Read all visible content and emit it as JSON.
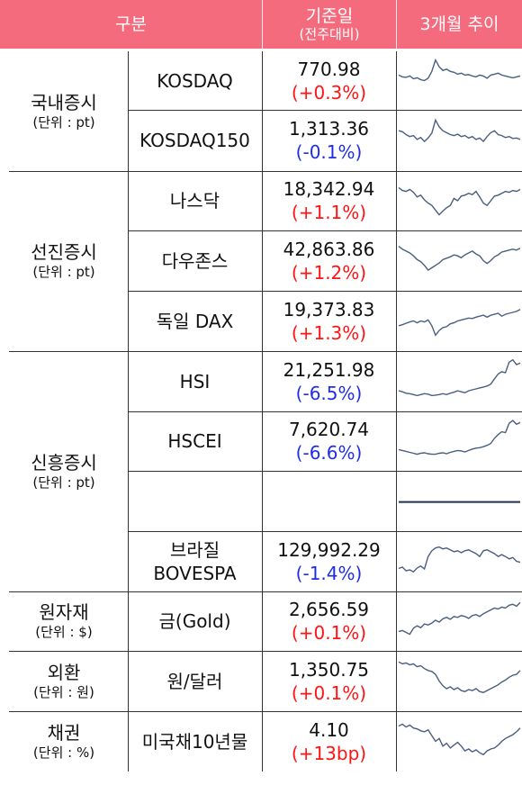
{
  "header": {
    "col_category": "구분",
    "col_value": "기준일",
    "col_value_sub": "(전주대비)",
    "col_trend": "3개월 추이"
  },
  "categories": [
    {
      "name": "국내증시",
      "unit": "(단위 : pt)"
    },
    {
      "name": "선진증시",
      "unit": "(단위 : pt)"
    },
    {
      "name": "신흥증시",
      "unit": "(단위 : pt)"
    },
    {
      "name": "원자재",
      "unit": "(단위 : $)"
    },
    {
      "name": "외환",
      "unit": "(단위 : 원)"
    },
    {
      "name": "채권",
      "unit": "(단위 : %)"
    }
  ],
  "rows": [
    {
      "index": "KOSDAQ",
      "value": "770.98",
      "change": "(+0.3%)",
      "direction": "up",
      "trend": [
        62,
        58,
        57,
        60,
        54,
        56,
        52,
        50,
        55,
        70,
        95,
        80,
        72,
        75,
        70,
        68,
        64,
        66,
        62,
        63,
        60,
        58,
        62,
        60,
        55,
        62,
        64,
        66,
        62,
        60,
        58,
        56,
        58,
        60
      ]
    },
    {
      "index": "KOSDAQ150",
      "value": "1,313.36",
      "change": "(-0.1%)",
      "direction": "down",
      "trend": [
        70,
        68,
        62,
        58,
        60,
        52,
        56,
        48,
        55,
        65,
        92,
        78,
        70,
        66,
        62,
        60,
        63,
        58,
        60,
        55,
        58,
        52,
        55,
        48,
        58,
        66,
        70,
        62,
        60,
        56,
        58,
        54,
        55,
        52
      ]
    },
    {
      "index": "나스닥",
      "value": "18,342.94",
      "change": "(+1.1%)",
      "direction": "up",
      "trend": [
        78,
        72,
        70,
        74,
        68,
        58,
        62,
        52,
        45,
        40,
        30,
        20,
        28,
        35,
        40,
        55,
        50,
        60,
        62,
        66,
        63,
        70,
        58,
        45,
        40,
        50,
        60,
        62,
        66,
        70,
        68,
        72,
        70,
        74
      ]
    },
    {
      "index": "다우존스",
      "value": "42,863.86",
      "change": "(+1.2%)",
      "direction": "up",
      "trend": [
        80,
        74,
        70,
        66,
        60,
        52,
        48,
        40,
        30,
        35,
        40,
        45,
        52,
        55,
        58,
        62,
        60,
        56,
        62,
        66,
        70,
        64,
        60,
        50,
        44,
        50,
        58,
        62,
        68,
        70,
        72,
        74,
        72,
        76
      ]
    },
    {
      "index": "독일 DAX",
      "value": "19,373.83",
      "change": "(+1.3%)",
      "direction": "up",
      "trend": [
        40,
        42,
        45,
        48,
        50,
        46,
        50,
        48,
        52,
        40,
        20,
        30,
        36,
        38,
        44,
        46,
        50,
        52,
        54,
        56,
        55,
        58,
        60,
        62,
        58,
        62,
        64,
        66,
        60,
        64,
        66,
        68,
        70,
        74
      ]
    },
    {
      "index": "HSI",
      "value": "21,251.98",
      "change": "(-6.5%)",
      "direction": "down",
      "trend": [
        30,
        28,
        25,
        24,
        22,
        20,
        22,
        24,
        23,
        20,
        21,
        22,
        24,
        22,
        25,
        27,
        30,
        28,
        26,
        30,
        32,
        34,
        36,
        38,
        40,
        44,
        55,
        65,
        70,
        68,
        90,
        95,
        85,
        88
      ]
    },
    {
      "index": "HSCEI",
      "value": "7,620.74",
      "change": "(-6.6%)",
      "direction": "down",
      "trend": [
        32,
        30,
        28,
        26,
        24,
        22,
        24,
        25,
        23,
        22,
        22,
        24,
        25,
        23,
        26,
        28,
        30,
        29,
        27,
        30,
        33,
        35,
        36,
        38,
        41,
        45,
        56,
        64,
        70,
        68,
        88,
        94,
        86,
        90
      ]
    },
    {
      "index": "",
      "value": "",
      "change": "",
      "direction": "",
      "trend": [
        48,
        48,
        48,
        48,
        48,
        48,
        48,
        48,
        48,
        48,
        48,
        48,
        48,
        48,
        48,
        48,
        48,
        48,
        48,
        48,
        48,
        48,
        48,
        48,
        48,
        48,
        48,
        48,
        48,
        48,
        48,
        48,
        48,
        48
      ]
    },
    {
      "index": "브라질\nBOVESPA",
      "value": "129,992.29",
      "change": "(-1.4%)",
      "direction": "down",
      "trend": [
        35,
        38,
        30,
        32,
        28,
        36,
        40,
        34,
        60,
        72,
        78,
        80,
        76,
        78,
        74,
        70,
        72,
        68,
        72,
        74,
        70,
        66,
        60,
        72,
        74,
        70,
        66,
        60,
        64,
        60,
        55,
        58,
        50,
        48
      ]
    },
    {
      "index": "금(Gold)",
      "value": "2,656.59",
      "change": "(+0.1%)",
      "direction": "up",
      "trend": [
        28,
        30,
        26,
        22,
        35,
        40,
        36,
        44,
        42,
        46,
        52,
        48,
        55,
        58,
        54,
        60,
        58,
        62,
        60,
        56,
        62,
        64,
        60,
        66,
        70,
        74,
        78,
        76,
        80,
        78,
        84,
        86,
        82,
        90
      ]
    },
    {
      "index": "원/달러",
      "value": "1,350.75",
      "change": "(+0.1%)",
      "direction": "up",
      "trend": [
        90,
        86,
        88,
        84,
        86,
        80,
        82,
        76,
        72,
        70,
        64,
        50,
        40,
        34,
        38,
        32,
        36,
        30,
        28,
        32,
        30,
        34,
        28,
        26,
        30,
        34,
        38,
        42,
        48,
        52,
        58,
        62,
        64,
        72
      ]
    },
    {
      "index": "미국채10년물",
      "value": "4.10",
      "change": "(+13bp)",
      "direction": "up",
      "trend": [
        82,
        86,
        80,
        84,
        78,
        76,
        72,
        70,
        74,
        62,
        50,
        56,
        40,
        46,
        36,
        42,
        48,
        40,
        30,
        34,
        28,
        32,
        26,
        22,
        30,
        34,
        36,
        42,
        50,
        56,
        60,
        64,
        70,
        78
      ]
    }
  ]
}
